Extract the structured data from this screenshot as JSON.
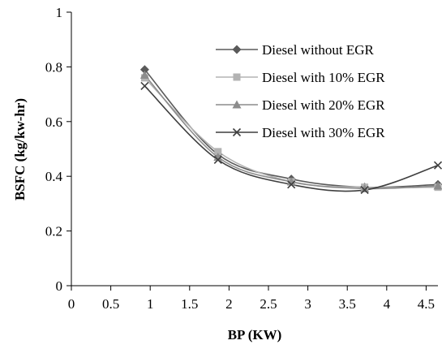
{
  "chart_data": {
    "type": "line",
    "title": "",
    "xlabel": "BP (KW)",
    "ylabel": "BSFC (kg/kw-hr)",
    "xlim": [
      0,
      4.65
    ],
    "ylim": [
      0,
      1
    ],
    "x_ticks": [
      "0",
      "0.5",
      "1",
      "1.5",
      "2",
      "2.5",
      "3",
      "3.5",
      "4",
      "4.5"
    ],
    "y_ticks": [
      "0",
      "0.2",
      "0.4",
      "0.6",
      "0.8",
      "1"
    ],
    "grid": false,
    "legend_position": "top-right",
    "smooth": true,
    "series": [
      {
        "name": "Diesel without EGR",
        "marker": "diamond",
        "color": "#5a5a5a",
        "x": [
          0.93,
          1.86,
          2.79,
          3.72,
          4.65
        ],
        "y": [
          0.79,
          0.48,
          0.39,
          0.36,
          0.37
        ]
      },
      {
        "name": "Diesel with 10% EGR",
        "marker": "square",
        "color": "#b3b3b3",
        "x": [
          0.93,
          1.86,
          2.79,
          3.72,
          4.65
        ],
        "y": [
          0.76,
          0.49,
          0.38,
          0.36,
          0.36
        ]
      },
      {
        "name": "Diesel with 20% EGR",
        "marker": "triangle",
        "color": "#8c8c8c",
        "x": [
          0.93,
          1.86,
          2.79,
          3.72,
          4.65
        ],
        "y": [
          0.77,
          0.47,
          0.38,
          0.355,
          0.365
        ]
      },
      {
        "name": "Diesel with 30% EGR",
        "marker": "x",
        "color": "#3f3f3f",
        "x": [
          0.93,
          1.86,
          2.79,
          3.72,
          4.65
        ],
        "y": [
          0.73,
          0.46,
          0.37,
          0.35,
          0.44
        ]
      }
    ]
  }
}
